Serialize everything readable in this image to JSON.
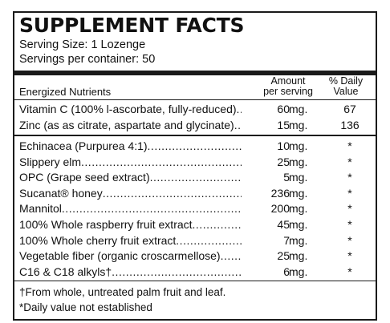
{
  "title": "SUPPLEMENT FACTS",
  "serving_size": "Serving Size:  1 Lozenge",
  "servings_per_container": "Servings per container: 50",
  "header": {
    "nutrients_label": "Energized Nutrients",
    "amount_label_1": "Amount",
    "amount_label_2": "per serving",
    "dv_label_1": "% Daily",
    "dv_label_2": "Value"
  },
  "group1": [
    {
      "name": "Vitamin C (100% l-ascorbate, fully-reduced)",
      "amount": "60",
      "unit": "mg.",
      "dv": "67"
    },
    {
      "name": "Zinc (as as citrate, aspartate and glycinate)",
      "amount": "15",
      "unit": "mg.",
      "dv": "136"
    }
  ],
  "group2": [
    {
      "name": "Echinacea (Purpurea 4:1)",
      "amount": "10",
      "unit": "mg.",
      "dv": "*"
    },
    {
      "name": "Slippery elm",
      "amount": "25",
      "unit": "mg.",
      "dv": "*"
    },
    {
      "name": "OPC (Grape seed extract)",
      "amount": "5",
      "unit": "mg.",
      "dv": "*"
    },
    {
      "name": "Sucanat® honey",
      "amount": "236",
      "unit": "mg.",
      "dv": "*"
    },
    {
      "name": "Mannitol",
      "amount": "200",
      "unit": "mg.",
      "dv": "*"
    },
    {
      "name": "100% Whole raspberry fruit extract",
      "amount": "45",
      "unit": "mg.",
      "dv": "*"
    },
    {
      "name": "100% Whole cherry fruit extract",
      "amount": "7",
      "unit": "mg.",
      "dv": "*"
    },
    {
      "name": "Vegetable fiber (organic croscarmellose)",
      "amount": "25",
      "unit": "mg.",
      "dv": "*"
    },
    {
      "name": "C16 & C18 alkyls†",
      "amount": "6",
      "unit": "mg.",
      "dv": "*"
    }
  ],
  "footnotes": {
    "dagger": "†From whole, untreated palm fruit and leaf.",
    "asterisk": "*Daily value not established"
  }
}
